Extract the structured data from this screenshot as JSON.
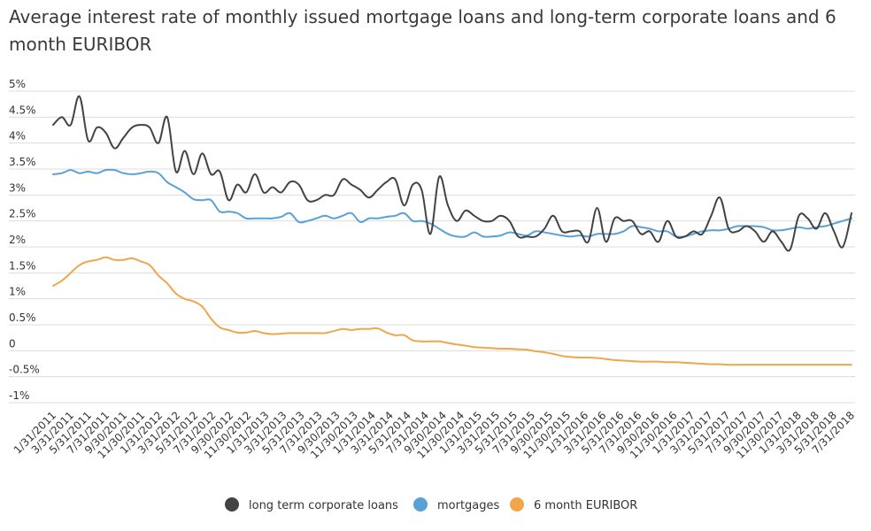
{
  "chart_data": {
    "type": "line",
    "title": "Average interest rate of monthly issued mortgage loans and long-term corporate loans and 6 month EURIBOR",
    "xlabel": "",
    "ylabel": "",
    "ylim": [
      -1,
      5
    ],
    "y_ticks": [
      "5%",
      "4.5%",
      "4%",
      "3.5%",
      "3%",
      "2.5%",
      "2%",
      "1.5%",
      "1%",
      "0.5%",
      "0",
      "-0.5%",
      "-1%"
    ],
    "y_tick_values": [
      5,
      4.5,
      4,
      3.5,
      3,
      2.5,
      2,
      1.5,
      1,
      0.5,
      0,
      -0.5,
      -1
    ],
    "x_tick_labels": [
      "1/31/2011",
      "3/31/2011",
      "5/31/2011",
      "7/31/2011",
      "9/30/2011",
      "11/30/2011",
      "1/31/2012",
      "3/31/2012",
      "5/31/2012",
      "7/31/2012",
      "9/30/2012",
      "11/30/2012",
      "1/31/2013",
      "3/31/2013",
      "5/31/2013",
      "7/31/2013",
      "9/30/2013",
      "11/30/2013",
      "1/31/2014",
      "3/31/2014",
      "5/31/2014",
      "7/31/2014",
      "9/30/2014",
      "11/30/2014",
      "1/31/2015",
      "3/31/2015",
      "5/31/2015",
      "7/31/2015",
      "9/30/2015",
      "11/30/2015",
      "1/31/2016",
      "3/31/2016",
      "5/31/2016",
      "7/31/2016",
      "9/30/2016",
      "11/30/2016",
      "1/31/2017",
      "3/31/2017",
      "5/31/2017",
      "7/31/2017",
      "9/30/2017",
      "11/30/2017",
      "1/31/2018",
      "3/31/2018",
      "5/31/2018",
      "7/31/2018"
    ],
    "grid": true,
    "legend_position": "bottom-center",
    "series": [
      {
        "name": "long term corporate loans",
        "color": "#434343",
        "values": [
          4.35,
          4.5,
          4.35,
          4.9,
          4.05,
          4.3,
          4.2,
          3.9,
          4.1,
          4.3,
          4.35,
          4.3,
          4.0,
          4.5,
          3.45,
          3.85,
          3.4,
          3.8,
          3.4,
          3.45,
          2.9,
          3.2,
          3.05,
          3.4,
          3.05,
          3.15,
          3.05,
          3.25,
          3.2,
          2.9,
          2.9,
          3.0,
          3.0,
          3.3,
          3.2,
          3.1,
          2.95,
          3.1,
          3.25,
          3.3,
          2.8,
          3.2,
          3.1,
          2.25,
          3.35,
          2.8,
          2.5,
          2.7,
          2.6,
          2.5,
          2.5,
          2.6,
          2.5,
          2.2,
          2.2,
          2.2,
          2.35,
          2.6,
          2.3,
          2.3,
          2.3,
          2.1,
          2.75,
          2.1,
          2.55,
          2.5,
          2.5,
          2.25,
          2.3,
          2.1,
          2.5,
          2.2,
          2.2,
          2.3,
          2.25,
          2.6,
          2.95,
          2.35,
          2.3,
          2.4,
          2.3,
          2.1,
          2.3,
          2.1,
          1.95,
          2.6,
          2.55,
          2.35,
          2.65,
          2.3,
          2.0,
          2.65
        ]
      },
      {
        "name": "mortgages",
        "color": "#5aa1d5",
        "values": [
          3.4,
          3.42,
          3.48,
          3.42,
          3.45,
          3.42,
          3.48,
          3.48,
          3.42,
          3.4,
          3.42,
          3.45,
          3.42,
          3.25,
          3.15,
          3.05,
          2.92,
          2.9,
          2.9,
          2.68,
          2.68,
          2.65,
          2.55,
          2.55,
          2.55,
          2.55,
          2.58,
          2.65,
          2.48,
          2.5,
          2.55,
          2.6,
          2.55,
          2.6,
          2.65,
          2.48,
          2.55,
          2.55,
          2.58,
          2.6,
          2.65,
          2.5,
          2.5,
          2.45,
          2.35,
          2.25,
          2.2,
          2.2,
          2.28,
          2.2,
          2.2,
          2.22,
          2.28,
          2.25,
          2.22,
          2.3,
          2.28,
          2.25,
          2.22,
          2.2,
          2.22,
          2.2,
          2.25,
          2.25,
          2.25,
          2.3,
          2.4,
          2.38,
          2.35,
          2.3,
          2.3,
          2.2,
          2.2,
          2.25,
          2.3,
          2.32,
          2.32,
          2.35,
          2.4,
          2.4,
          2.4,
          2.38,
          2.32,
          2.32,
          2.35,
          2.38,
          2.35,
          2.38,
          2.4,
          2.45,
          2.5,
          2.55
        ]
      },
      {
        "name": "6 month EURIBOR",
        "color": "#f0a64b",
        "values": [
          1.25,
          1.35,
          1.5,
          1.65,
          1.72,
          1.75,
          1.8,
          1.75,
          1.75,
          1.78,
          1.72,
          1.65,
          1.45,
          1.3,
          1.1,
          1.0,
          0.95,
          0.85,
          0.62,
          0.45,
          0.4,
          0.35,
          0.35,
          0.38,
          0.34,
          0.32,
          0.33,
          0.34,
          0.34,
          0.34,
          0.34,
          0.34,
          0.38,
          0.42,
          0.4,
          0.42,
          0.42,
          0.43,
          0.35,
          0.3,
          0.3,
          0.2,
          0.18,
          0.18,
          0.18,
          0.15,
          0.12,
          0.1,
          0.07,
          0.06,
          0.05,
          0.04,
          0.04,
          0.03,
          0.02,
          -0.01,
          -0.03,
          -0.06,
          -0.1,
          -0.12,
          -0.13,
          -0.13,
          -0.14,
          -0.16,
          -0.18,
          -0.19,
          -0.2,
          -0.21,
          -0.21,
          -0.21,
          -0.22,
          -0.22,
          -0.23,
          -0.24,
          -0.25,
          -0.26,
          -0.26,
          -0.27,
          -0.27,
          -0.27,
          -0.27,
          -0.27,
          -0.27,
          -0.27,
          -0.27,
          -0.27,
          -0.27,
          -0.27,
          -0.27,
          -0.27,
          -0.27,
          -0.27
        ]
      }
    ]
  }
}
